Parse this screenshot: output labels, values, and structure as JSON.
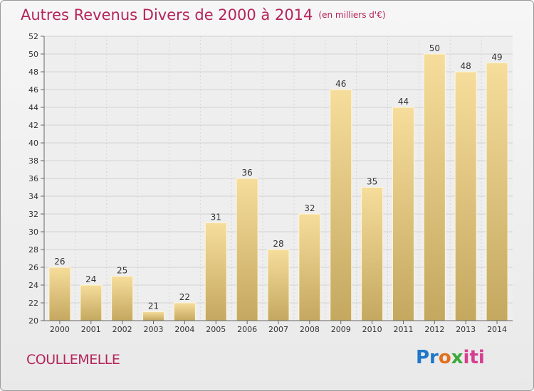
{
  "header": {
    "title": "Autres Revenus Divers de 2000 à 2014",
    "unit": "(en milliers d'€)"
  },
  "footer": {
    "city": "COULLEMELLE",
    "brand_parts": [
      "Pr",
      "o",
      "x",
      "iti"
    ]
  },
  "colors": {
    "accent": "#b5245a",
    "bar_top": "#f6dd9b",
    "bar_bottom": "#c4a860"
  },
  "chart_data": {
    "type": "bar",
    "title": "Autres Revenus Divers de 2000 à 2014",
    "xlabel": "",
    "ylabel": "",
    "categories": [
      "2000",
      "2001",
      "2002",
      "2003",
      "2004",
      "2005",
      "2006",
      "2007",
      "2008",
      "2009",
      "2010",
      "2011",
      "2012",
      "2013",
      "2014"
    ],
    "values": [
      26,
      24,
      25,
      21,
      22,
      31,
      36,
      28,
      32,
      46,
      35,
      44,
      50,
      48,
      49
    ],
    "ylim": [
      20,
      52
    ],
    "ytick_step": 2,
    "grid": true,
    "legend": "none"
  }
}
